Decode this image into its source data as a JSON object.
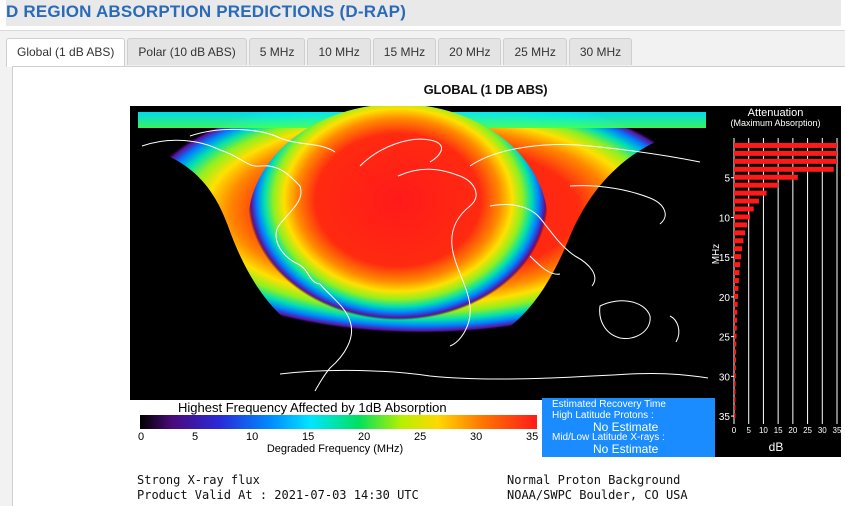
{
  "page_title": "D REGION ABSORPTION PREDICTIONS (D-RAP)",
  "tabs": [
    {
      "label": "Global (1 dB ABS)",
      "active": true
    },
    {
      "label": "Polar (10 dB ABS)",
      "active": false
    },
    {
      "label": "5 MHz",
      "active": false
    },
    {
      "label": "10 MHz",
      "active": false
    },
    {
      "label": "15 MHz",
      "active": false
    },
    {
      "label": "20 MHz",
      "active": false
    },
    {
      "label": "25 MHz",
      "active": false
    },
    {
      "label": "30 MHz",
      "active": false
    }
  ],
  "figure": {
    "title": "GLOBAL (1 DB ABS)",
    "attenuation": {
      "title": "Attenuation",
      "subtitle": "(Maximum Absorption)",
      "y_label": "MHz",
      "x_label": "dB",
      "y_ticks": [
        "5",
        "10",
        "15",
        "20",
        "25",
        "30",
        "35"
      ],
      "x_ticks": [
        "0",
        "5",
        "10",
        "15",
        "20",
        "25",
        "30",
        "35"
      ],
      "bar_color": "#ff1a1a"
    },
    "legend": {
      "title": "Highest Frequency Affected by 1dB Absorption",
      "ticks": [
        "0",
        "5",
        "10",
        "15",
        "20",
        "25",
        "30",
        "35"
      ],
      "x_label": "Degraded Frequency (MHz)"
    },
    "recovery": {
      "title": "Estimated Recovery Time",
      "high_lat_label": "High Latitude Protons :",
      "high_lat_value": "No Estimate",
      "mid_low_label": "Mid/Low Latitude X-rays :",
      "mid_low_value": "No Estimate",
      "bg_color": "#1a8cff"
    },
    "footer": {
      "left_1": "Strong X-ray flux",
      "left_2": "Product Valid At : 2021-07-03 14:30 UTC",
      "right_1": "Normal Proton Background",
      "right_2": "NOAA/SWPC Boulder, CO USA"
    }
  },
  "colors": {
    "title_blue": "#2a6ab8",
    "absorption_core": "#ff1a1a"
  }
}
